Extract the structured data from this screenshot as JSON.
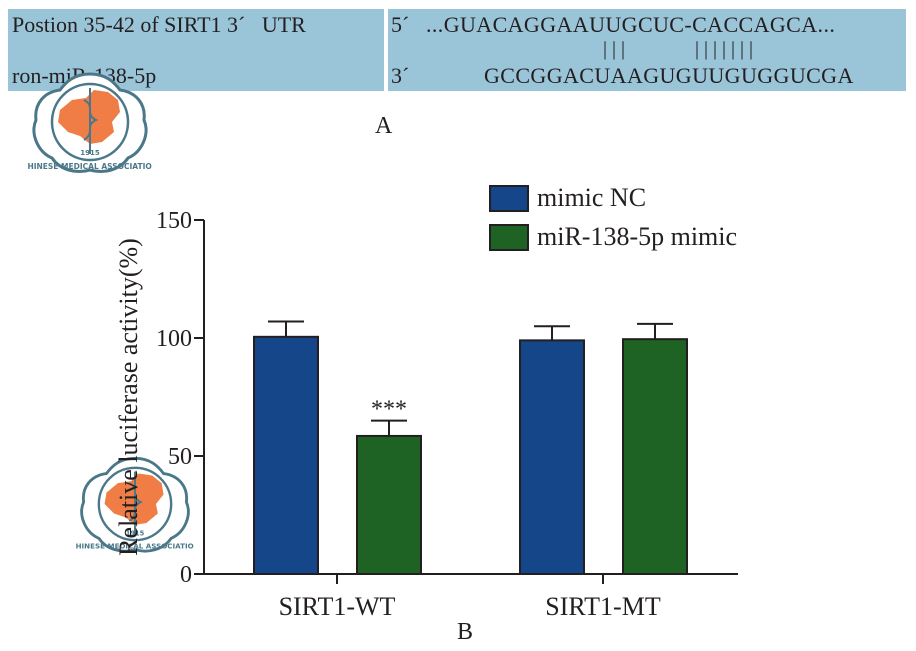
{
  "panel_a": {
    "label": "A",
    "left_line1": "Postion 35-42 of SIRT1 3´   UTR",
    "left_line2": "ron-miR-138-5p",
    "right_prime5": "5´",
    "right_seq_top": "...GUACAGGAAUUGCUC-CACCAGCA...",
    "right_pairs": "| | |              | | | | | | |",
    "right_prime3": "3´",
    "right_seq_bottom": "GCCGGACUAAGUGUUGUGGUCGA",
    "background_color": "#9ac4d8"
  },
  "panel_b": {
    "label": "B"
  },
  "watermark": {
    "text_en": "CHINESE MEDICAL ASSOCIATION",
    "year": "1915",
    "map_color": "#ef7d45",
    "ring_color": "#4a7889"
  },
  "chart_data": {
    "type": "bar",
    "title": "",
    "xlabel": "",
    "ylabel": "Relative luciferase activity(%)",
    "ylim": [
      0,
      150
    ],
    "yticks": [
      0,
      50,
      100,
      150
    ],
    "categories": [
      "SIRT1-WT",
      "SIRT1-MT"
    ],
    "series": [
      {
        "name": "mimic NC",
        "color": "#15468a",
        "values": [
          100.5,
          99
        ],
        "error": [
          6.5,
          6
        ]
      },
      {
        "name": "miR-138-5p mimic",
        "color": "#1e6323",
        "values": [
          58.5,
          99.5
        ],
        "error": [
          6.5,
          6.5
        ]
      }
    ],
    "annotations": [
      {
        "category": "SIRT1-WT",
        "series": "miR-138-5p mimic",
        "text": "***"
      }
    ],
    "legend_position": "top-right",
    "grid": false
  }
}
